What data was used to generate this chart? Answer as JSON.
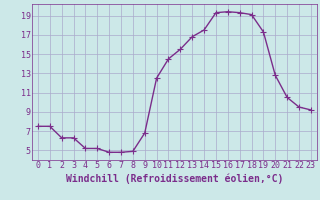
{
  "x": [
    0,
    1,
    2,
    3,
    4,
    5,
    6,
    7,
    8,
    9,
    10,
    11,
    12,
    13,
    14,
    15,
    16,
    17,
    18,
    19,
    20,
    21,
    22,
    23
  ],
  "y": [
    7.5,
    7.5,
    6.3,
    6.3,
    5.2,
    5.2,
    4.8,
    4.8,
    4.9,
    6.8,
    12.5,
    14.5,
    15.5,
    16.8,
    17.5,
    19.3,
    19.4,
    19.3,
    19.1,
    17.3,
    12.8,
    10.5,
    9.5,
    9.2
  ],
  "line_color": "#7B2D8B",
  "marker": "+",
  "marker_size": 4,
  "marker_linewidth": 0.8,
  "bg_color": "#cce8e8",
  "grid_color": "#aaaacc",
  "xlabel": "Windchill (Refroidissement éolien,°C)",
  "xlabel_color": "#7B2D8B",
  "xlim": [
    -0.5,
    23.5
  ],
  "ylim": [
    4.0,
    20.2
  ],
  "yticks": [
    5,
    7,
    9,
    11,
    13,
    15,
    17,
    19
  ],
  "xticks": [
    0,
    1,
    2,
    3,
    4,
    5,
    6,
    7,
    8,
    9,
    10,
    11,
    12,
    13,
    14,
    15,
    16,
    17,
    18,
    19,
    20,
    21,
    22,
    23
  ],
  "tick_color": "#7B2D8B",
  "spine_color": "#7B2D8B",
  "xlabel_fontsize": 7,
  "tick_fontsize": 6,
  "line_width": 1.0
}
